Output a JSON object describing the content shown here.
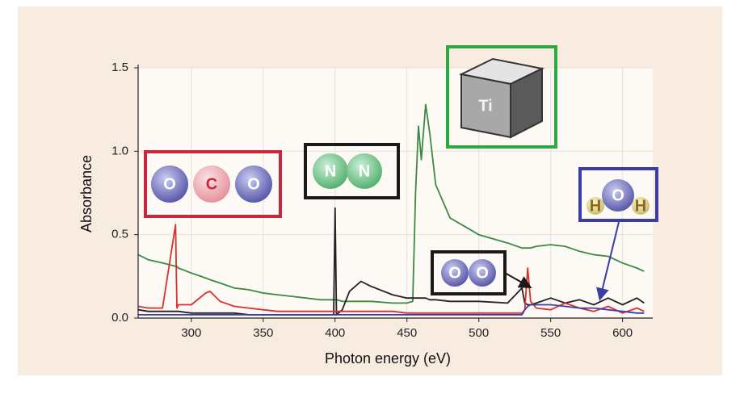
{
  "chart_data": {
    "type": "line",
    "y_label": "Absorbance",
    "x_label": "Photon energy (eV)",
    "x": [
      263,
      270,
      280,
      289,
      290,
      291,
      300,
      310,
      313,
      320,
      330,
      340,
      350,
      360,
      370,
      380,
      390,
      399,
      400,
      401,
      405,
      410,
      418,
      425,
      440,
      450,
      454,
      456,
      458,
      460,
      463,
      466,
      470,
      480,
      490,
      500,
      520,
      530,
      532,
      534,
      536,
      540,
      550,
      560,
      570,
      580,
      590,
      600,
      610,
      615
    ],
    "series": [
      {
        "color": "#3a8a45",
        "values": [
          0.38,
          0.35,
          0.33,
          0.31,
          0.31,
          0.3,
          0.27,
          0.24,
          0.23,
          0.21,
          0.18,
          0.17,
          0.15,
          0.14,
          0.13,
          0.12,
          0.11,
          0.11,
          0.11,
          0.11,
          0.1,
          0.1,
          0.1,
          0.1,
          0.09,
          0.09,
          0.1,
          0.75,
          1.15,
          0.95,
          1.28,
          1.1,
          0.8,
          0.6,
          0.55,
          0.5,
          0.45,
          0.42,
          0.42,
          0.42,
          0.42,
          0.43,
          0.44,
          0.43,
          0.4,
          0.38,
          0.37,
          0.33,
          0.3,
          0.28
        ]
      },
      {
        "color": "#222222",
        "values": [
          0.05,
          0.04,
          0.04,
          0.04,
          0.04,
          0.04,
          0.03,
          0.03,
          0.03,
          0.03,
          0.03,
          0.02,
          0.02,
          0.02,
          0.02,
          0.02,
          0.02,
          0.02,
          0.66,
          0.02,
          0.05,
          0.16,
          0.22,
          0.19,
          0.14,
          0.12,
          0.12,
          0.12,
          0.12,
          0.12,
          0.12,
          0.11,
          0.11,
          0.1,
          0.1,
          0.1,
          0.09,
          0.18,
          0.09,
          0.08,
          0.08,
          0.09,
          0.12,
          0.09,
          0.11,
          0.08,
          0.12,
          0.08,
          0.12,
          0.09
        ]
      },
      {
        "color": "#d9302c",
        "values": [
          0.07,
          0.06,
          0.06,
          0.56,
          0.06,
          0.08,
          0.08,
          0.15,
          0.16,
          0.1,
          0.07,
          0.06,
          0.05,
          0.04,
          0.04,
          0.04,
          0.04,
          0.04,
          0.04,
          0.04,
          0.04,
          0.04,
          0.04,
          0.04,
          0.04,
          0.03,
          0.03,
          0.03,
          0.03,
          0.03,
          0.03,
          0.03,
          0.03,
          0.03,
          0.03,
          0.03,
          0.03,
          0.03,
          0.05,
          0.3,
          0.1,
          0.06,
          0.05,
          0.09,
          0.06,
          0.04,
          0.07,
          0.03,
          0.06,
          0.04
        ]
      },
      {
        "color": "#3b3bb0",
        "values": [
          0.02,
          0.02,
          0.02,
          0.02,
          0.02,
          0.02,
          0.02,
          0.02,
          0.02,
          0.02,
          0.02,
          0.02,
          0.02,
          0.02,
          0.02,
          0.02,
          0.02,
          0.02,
          0.02,
          0.02,
          0.02,
          0.02,
          0.02,
          0.02,
          0.02,
          0.02,
          0.02,
          0.02,
          0.02,
          0.02,
          0.02,
          0.02,
          0.02,
          0.02,
          0.02,
          0.02,
          0.02,
          0.02,
          0.05,
          0.07,
          0.08,
          0.08,
          0.08,
          0.07,
          0.06,
          0.06,
          0.05,
          0.04,
          0.03,
          0.03
        ]
      }
    ],
    "xlim": [
      263,
      621
    ],
    "ylim": [
      0,
      1.5
    ],
    "xticks": [
      300,
      350,
      400,
      450,
      500,
      550,
      600
    ],
    "yticks": [
      {
        "value": 0,
        "label": "0.0"
      },
      0.5,
      {
        "value": 1,
        "label": "1.0"
      },
      1.5
    ],
    "grid": true,
    "annotations": [
      {
        "atoms": [
          "O",
          "C",
          "O"
        ],
        "color": "#c8283c"
      },
      {
        "atoms": [
          "N",
          "N"
        ],
        "color": "#1a1a1a"
      },
      {
        "atoms": [
          "Ti"
        ],
        "color": "#2ea843"
      },
      {
        "atoms": [
          "O",
          "O"
        ],
        "color": "#1a1a1a"
      },
      {
        "atoms": [
          "H",
          "O",
          "H"
        ],
        "color": "#3c3ca8"
      }
    ]
  }
}
